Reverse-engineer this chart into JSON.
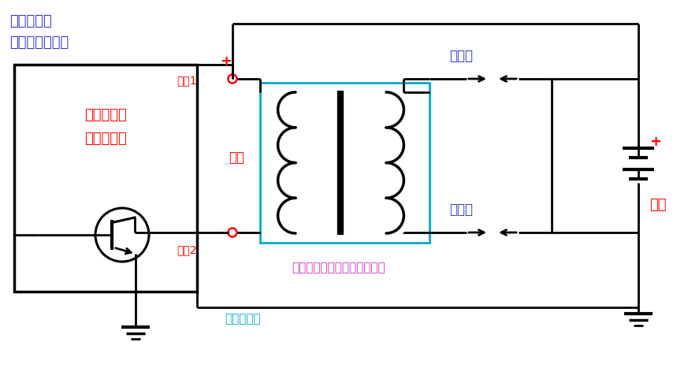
{
  "title_line1": "双缸一体式",
  "title_line2": "点火线圈电路图",
  "label_module1": "点火模块或",
  "label_module2": "发动机电脑",
  "label_primary": "初级",
  "label_terminal1": "端子1",
  "label_terminal2": "端子2",
  "label_spark1": "火花塞",
  "label_spark2": "火花塞",
  "label_battery": "电池",
  "label_shared": "两个火花塞公用一个点火线圈",
  "label_brand": "车师傅电子",
  "label_plus_top": "+",
  "label_plus_battery": "+",
  "bg_color": "#ffffff",
  "line_color": "#000000",
  "red_color": "#ff0000",
  "blue_color": "#3333cc",
  "purple_color": "#cc33cc",
  "cyan_color": "#00aacc",
  "title_color": "#3333cc",
  "coil_box_color": "#00aacc",
  "lw_main": 2.0,
  "lw_thick": 3.0
}
